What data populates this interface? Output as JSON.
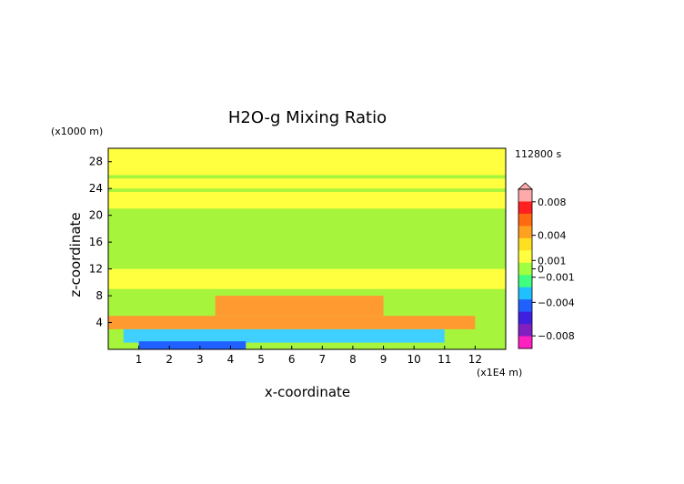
{
  "chart_data": {
    "type": "heatmap",
    "title": "H2O-g Mixing Ratio",
    "xlabel": "x-coordinate",
    "ylabel": "z-coordinate",
    "x_unit": "(x1E4 m)",
    "y_unit": "(x1000 m)",
    "time_label": "112800 s",
    "xlim": [
      0,
      13
    ],
    "ylim": [
      0,
      30
    ],
    "x_ticks": [
      "1",
      "2",
      "3",
      "4",
      "5",
      "6",
      "7",
      "8",
      "9",
      "10",
      "11",
      "12"
    ],
    "y_ticks": [
      "4",
      "8",
      "12",
      "16",
      "20",
      "24",
      "28"
    ],
    "colorbar": {
      "labels": [
        "0.008",
        "0.004",
        "0.001",
        "0",
        "−0.001",
        "−0.004",
        "−0.008"
      ],
      "label_values": [
        0.008,
        0.004,
        0.001,
        0,
        -0.001,
        -0.004,
        -0.008
      ],
      "colors": [
        "#ffaaaa",
        "#ff2020",
        "#ff6a10",
        "#ffa020",
        "#ffe020",
        "#ffff40",
        "#a0ff40",
        "#40ff80",
        "#20c0ff",
        "#2060ff",
        "#4020e0",
        "#8020c0",
        "#ff20c0"
      ]
    },
    "fields": {
      "background": "#a6f43c",
      "bands": [
        {
          "z_range": [
            26,
            30
          ],
          "x_range": [
            0,
            13
          ],
          "level": "0"
        },
        {
          "z_range": [
            24,
            25.5
          ],
          "x_range": [
            0,
            13
          ],
          "level": "0"
        },
        {
          "z_range": [
            21,
            23.5
          ],
          "x_range": [
            0,
            13
          ],
          "level": "0"
        },
        {
          "z_range": [
            9,
            12
          ],
          "x_range": [
            0,
            13
          ],
          "level": "0"
        },
        {
          "z_range": [
            5,
            8
          ],
          "x_range": [
            3.5,
            9
          ],
          "level": "0.001"
        },
        {
          "z_range": [
            3,
            5
          ],
          "x_range": [
            0,
            12
          ],
          "level": "0.001"
        },
        {
          "z_range": [
            1,
            3
          ],
          "x_range": [
            0.5,
            11
          ],
          "level": "-0.001"
        },
        {
          "z_range": [
            0,
            1.2
          ],
          "x_range": [
            1,
            4.5
          ],
          "level": "-0.004"
        }
      ]
    }
  }
}
